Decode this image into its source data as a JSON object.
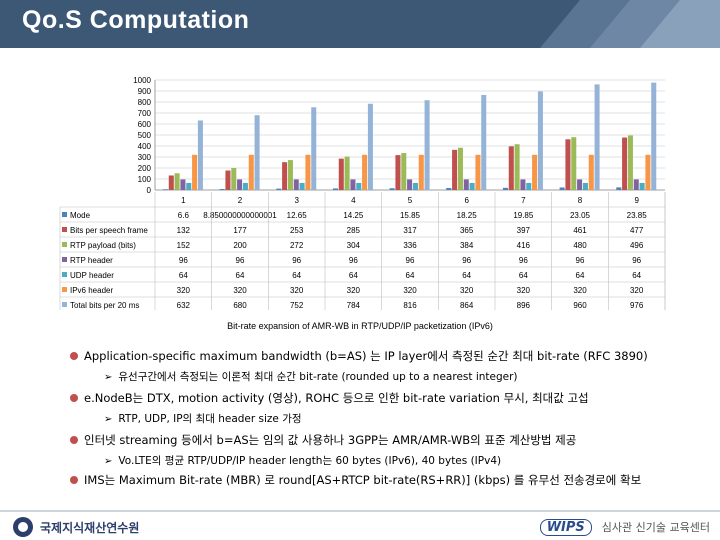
{
  "slide": {
    "title": "Qo.S Computation",
    "caption": "Bit-rate expansion of AMR-WB in RTP/UDP/IP packetization (IPv6)",
    "bullets": [
      {
        "text": "Application-specific maximum bandwidth (b=AS) 는 IP layer에서 측정된 순간 최대 bit-rate (RFC 3890)",
        "sub": "유선구간에서 측정되는 이론적 최대 순간 bit-rate (rounded up to a nearest integer)"
      },
      {
        "text": "e.NodeB는 DTX, motion activity (영상), ROHC 등으로 인한 bit-rate variation 무시, 최대값 고섭",
        "sub": "RTP, UDP, IP의 최대 header size 가정"
      },
      {
        "text": "인터넷 streaming 등에서 b=AS는 임의 값 사용하나 3GPP는 AMR/AMR-WB의 표준 계산방법 제공",
        "sub": "Vo.LTE의 평균 RTP/UDP/IP header length는 60 bytes (IPv6), 40 bytes (IPv4)"
      },
      {
        "text": "IMS는 Maximum Bit-rate (MBR) 로 round[AS+RTCP bit-rate(RS+RR)] (kbps) 를 유무선 전송경로에 확보",
        "sub": ""
      }
    ],
    "footer": {
      "left_logo_text": "국제지식재산연수원",
      "right_brand": "WIPS",
      "right_text": "심사관 신기술 교육센터"
    }
  },
  "chart_data": {
    "type": "bar",
    "categories": [
      "1",
      "2",
      "3",
      "4",
      "5",
      "6",
      "7",
      "8",
      "9"
    ],
    "category_labels_shown": [
      "1",
      "2",
      "3",
      "4",
      "5",
      "6",
      "7",
      "8",
      "9"
    ],
    "y_ticks": [
      "1000",
      "900",
      "800",
      "700",
      "600",
      "500",
      "400",
      "300",
      "200",
      "100",
      "0"
    ],
    "ylim": [
      0,
      1000
    ],
    "grid": true,
    "legend": "data-table",
    "series": [
      {
        "name": "Mode",
        "color": "#4f81bd",
        "values": [
          6.6,
          8.85,
          12.65,
          14.25,
          15.85,
          18.25,
          19.85,
          23.05,
          23.85
        ],
        "labels": [
          "6.6",
          "8.850000000000001",
          "12.65",
          "14.25",
          "15.85",
          "18.25",
          "19.85",
          "23.05",
          "23.85"
        ]
      },
      {
        "name": "Bits per speech frame",
        "color": "#c0504d",
        "values": [
          132,
          177,
          253,
          285,
          317,
          365,
          397,
          461,
          477
        ],
        "labels": [
          "132",
          "177",
          "253",
          "285",
          "317",
          "365",
          "397",
          "461",
          "477"
        ]
      },
      {
        "name": "RTP payload (bits)",
        "color": "#9bbb59",
        "values": [
          152,
          200,
          272,
          304,
          336,
          384,
          416,
          480,
          496
        ],
        "labels": [
          "152",
          "200",
          "272",
          "304",
          "336",
          "384",
          "416",
          "480",
          "496"
        ]
      },
      {
        "name": "RTP header",
        "color": "#8064a2",
        "values": [
          96,
          96,
          96,
          96,
          96,
          96,
          96,
          96,
          96
        ],
        "labels": [
          "96",
          "96",
          "96",
          "96",
          "96",
          "96",
          "96",
          "96",
          "96"
        ]
      },
      {
        "name": "UDP header",
        "color": "#4bacc6",
        "values": [
          64,
          64,
          64,
          64,
          64,
          64,
          64,
          64,
          64
        ],
        "labels": [
          "64",
          "64",
          "64",
          "64",
          "64",
          "64",
          "64",
          "64",
          "64"
        ]
      },
      {
        "name": "IPv6 header",
        "color": "#f79646",
        "values": [
          320,
          320,
          320,
          320,
          320,
          320,
          320,
          320,
          320
        ],
        "labels": [
          "320",
          "320",
          "320",
          "320",
          "320",
          "320",
          "320",
          "320",
          "320"
        ]
      },
      {
        "name": "Total bits per 20 ms",
        "color": "#95b3d7",
        "values": [
          632,
          680,
          752,
          784,
          816,
          864,
          896,
          960,
          976
        ],
        "labels": [
          "632",
          "680",
          "752",
          "784",
          "816",
          "864",
          "896",
          "960",
          "976"
        ]
      }
    ]
  }
}
